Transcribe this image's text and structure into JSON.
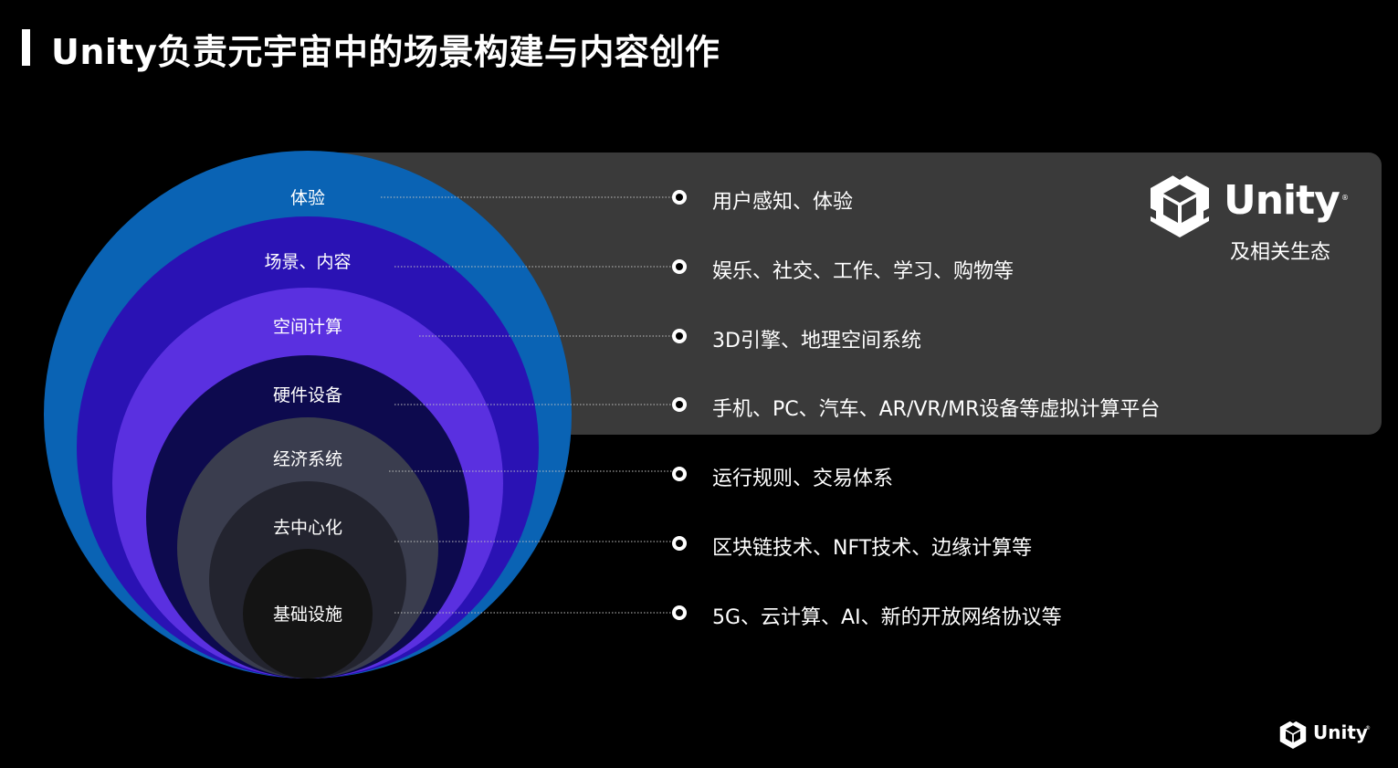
{
  "title": "Unity负责元宇宙中的场景构建与内容创作",
  "brand": {
    "wordmark": "Unity",
    "registered": "®",
    "subtitle": "及相关生态",
    "logo_icon": "unity-cube-icon"
  },
  "footer": {
    "wordmark": "Unity",
    "registered": "®",
    "logo_icon": "unity-cube-icon"
  },
  "colors": {
    "background": "#000000",
    "panel": "#3a3a3a",
    "layer_1": "#0a63b4",
    "layer_2": "#2a12b4",
    "layer_3": "#5a30e0",
    "layer_4": "#0d0a4e",
    "layer_5": "#3a3d4e",
    "layer_6": "#23242f",
    "layer_7": "#141414"
  },
  "layers": [
    {
      "label": "体验",
      "description": "用户感知、体验"
    },
    {
      "label": "场景、内容",
      "description": "娱乐、社交、工作、学习、购物等"
    },
    {
      "label": "空间计算",
      "description": "3D引擎、地理空间系统"
    },
    {
      "label": "硬件设备",
      "description": "手机、PC、汽车、AR/VR/MR设备等虚拟计算平台"
    },
    {
      "label": "经济系统",
      "description": "运行规则、交易体系"
    },
    {
      "label": "去中心化",
      "description": "区块链技术、NFT技术、边缘计算等"
    },
    {
      "label": "基础设施",
      "description": "5G、云计算、AI、新的开放网络协议等"
    }
  ]
}
